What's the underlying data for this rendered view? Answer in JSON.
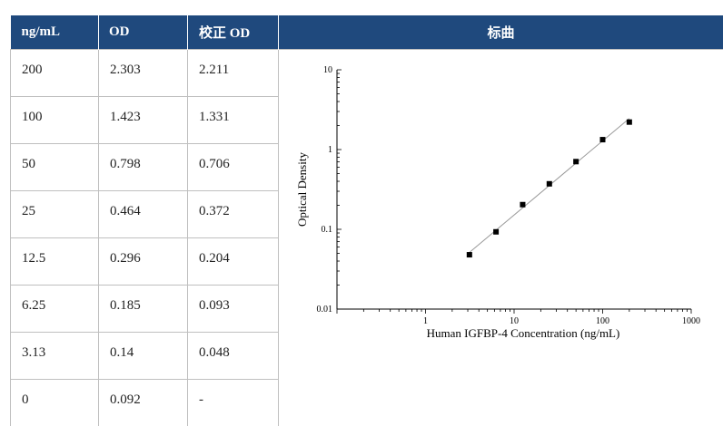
{
  "caption_fragment": "",
  "table": {
    "headers": [
      "ng/mL",
      "OD",
      "校正 OD",
      "标曲"
    ],
    "rows": [
      [
        "200",
        "2.303",
        "2.211"
      ],
      [
        "100",
        "1.423",
        "1.331"
      ],
      [
        "50",
        "0.798",
        "0.706"
      ],
      [
        "25",
        "0.464",
        "0.372"
      ],
      [
        "12.5",
        "0.296",
        "0.204"
      ],
      [
        "6.25",
        "0.185",
        "0.093"
      ],
      [
        "3.13",
        "0.14",
        "0.048"
      ],
      [
        "0",
        "0.092",
        "-"
      ]
    ]
  },
  "chart_data": {
    "type": "scatter",
    "x_scale": "log",
    "y_scale": "log",
    "xlabel": "Human IGFBP-4 Concentration (ng/mL)",
    "ylabel": "Optical Density",
    "xlim": [
      0.1,
      1000
    ],
    "ylim": [
      0.01,
      10
    ],
    "x_ticks": [
      "1",
      "10",
      "100",
      "1000"
    ],
    "y_ticks": [
      "0.01",
      "0.1",
      "1",
      "10"
    ],
    "series": [
      {
        "x": [
          3.13,
          6.25,
          12.5,
          25,
          50,
          100,
          200
        ],
        "y": [
          0.048,
          0.093,
          0.204,
          0.372,
          0.706,
          1.331,
          2.211
        ]
      }
    ],
    "fit_line": true,
    "marker": "square",
    "colors": {
      "points": "#000000",
      "line": "#999999"
    }
  },
  "colors": {
    "header_bg": "#1f497d",
    "header_text": "#ffffff",
    "grid": "#bfbfbf"
  }
}
